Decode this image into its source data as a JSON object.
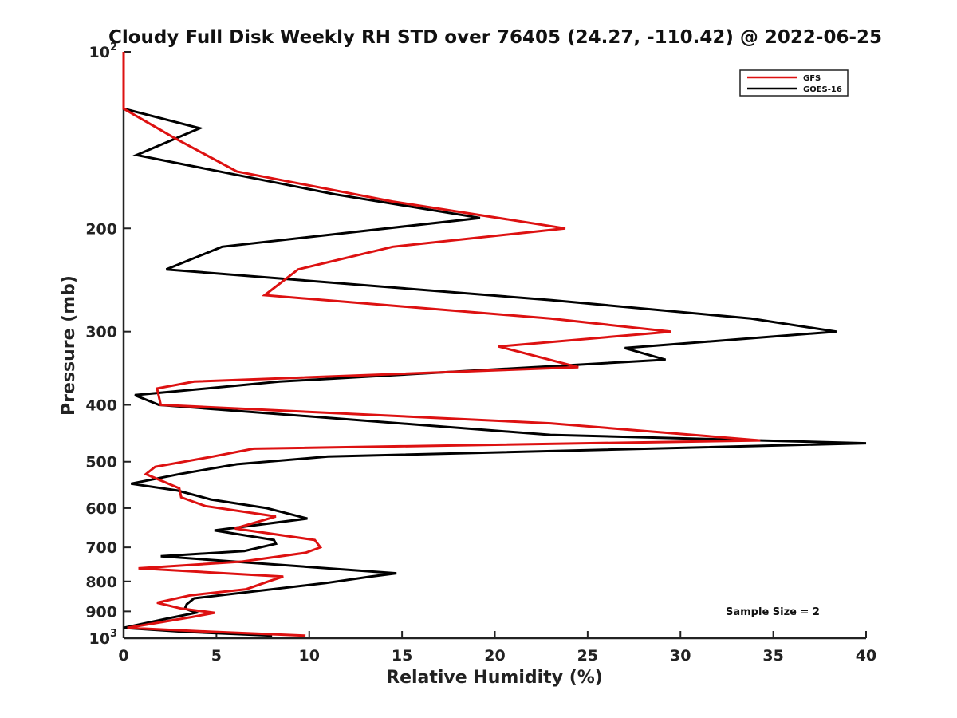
{
  "chart_data": {
    "type": "line",
    "title": "Cloudy Full Disk Weekly RH STD over 76405 (24.27, -110.42) @ 2022-06-25",
    "xlabel": "Relative Humidity (%)",
    "ylabel": "Pressure (mb)",
    "xlim": [
      0,
      40
    ],
    "ylim": [
      100,
      1000
    ],
    "yscale": "log",
    "y_reversed": true,
    "x_ticks": [
      "0",
      "5",
      "10",
      "15",
      "20",
      "25",
      "30",
      "35",
      "40"
    ],
    "y_ticks": [
      {
        "value": 100,
        "label": "10",
        "sup": "2"
      },
      {
        "value": 200,
        "label": "200"
      },
      {
        "value": 300,
        "label": "300"
      },
      {
        "value": 400,
        "label": "400"
      },
      {
        "value": 500,
        "label": "500"
      },
      {
        "value": 600,
        "label": "600"
      },
      {
        "value": 700,
        "label": "700"
      },
      {
        "value": 800,
        "label": "800"
      },
      {
        "value": 900,
        "label": "900"
      },
      {
        "value": 1000,
        "label": "10",
        "sup": "3"
      }
    ],
    "legend_position": "top-right",
    "grid": false,
    "annotation": "Sample Size = 2",
    "series": [
      {
        "name": "GFS",
        "color": "#dd1111",
        "points": [
          [
            0,
            100
          ],
          [
            0,
            125
          ],
          [
            2.7,
            140
          ],
          [
            6.1,
            160
          ],
          [
            14.5,
            180
          ],
          [
            23.8,
            200
          ],
          [
            14.5,
            215
          ],
          [
            9.4,
            235
          ],
          [
            7.6,
            260
          ],
          [
            23,
            285
          ],
          [
            29.5,
            300
          ],
          [
            20.2,
            318
          ],
          [
            24.5,
            345
          ],
          [
            3.8,
            365
          ],
          [
            1.8,
            375
          ],
          [
            2,
            400
          ],
          [
            23,
            430
          ],
          [
            34.3,
            460
          ],
          [
            7,
            475
          ],
          [
            4.8,
            490
          ],
          [
            1.7,
            510
          ],
          [
            1.2,
            525
          ],
          [
            3,
            555
          ],
          [
            3.1,
            575
          ],
          [
            4.4,
            595
          ],
          [
            8.2,
            620
          ],
          [
            6,
            650
          ],
          [
            10.3,
            680
          ],
          [
            10.6,
            700
          ],
          [
            9.8,
            715
          ],
          [
            6.4,
            740
          ],
          [
            0.8,
            760
          ],
          [
            8.6,
            785
          ],
          [
            7.8,
            800
          ],
          [
            6.6,
            825
          ],
          [
            3.6,
            845
          ],
          [
            1.8,
            870
          ],
          [
            3.1,
            890
          ],
          [
            4.9,
            905
          ],
          [
            3.7,
            920
          ],
          [
            0.2,
            960
          ],
          [
            4.7,
            975
          ],
          [
            9.8,
            990
          ]
        ]
      },
      {
        "name": "GOES-16",
        "color": "#000000",
        "points": [
          [
            0,
            100
          ],
          [
            0,
            125
          ],
          [
            4.1,
            135
          ],
          [
            0.7,
            150
          ],
          [
            11.4,
            175
          ],
          [
            19.2,
            192
          ],
          [
            5.3,
            215
          ],
          [
            2.3,
            235
          ],
          [
            23,
            265
          ],
          [
            33.8,
            285
          ],
          [
            38.4,
            300
          ],
          [
            27,
            320
          ],
          [
            29.2,
            335
          ],
          [
            8.4,
            365
          ],
          [
            0.6,
            385
          ],
          [
            1.9,
            400
          ],
          [
            23,
            450
          ],
          [
            40,
            465
          ],
          [
            11,
            490
          ],
          [
            6.1,
            505
          ],
          [
            3,
            525
          ],
          [
            0.4,
            545
          ],
          [
            2.9,
            560
          ],
          [
            4.7,
            580
          ],
          [
            7.7,
            600
          ],
          [
            9.9,
            625
          ],
          [
            4.9,
            655
          ],
          [
            8.1,
            680
          ],
          [
            8.2,
            690
          ],
          [
            6.5,
            710
          ],
          [
            2,
            725
          ],
          [
            14.7,
            775
          ],
          [
            13.3,
            785
          ],
          [
            10.9,
            805
          ],
          [
            3.8,
            855
          ],
          [
            3.4,
            875
          ],
          [
            3.3,
            890
          ],
          [
            3.9,
            905
          ],
          [
            2.4,
            925
          ],
          [
            0,
            960
          ],
          [
            3.2,
            975
          ],
          [
            8,
            990
          ]
        ]
      }
    ]
  }
}
